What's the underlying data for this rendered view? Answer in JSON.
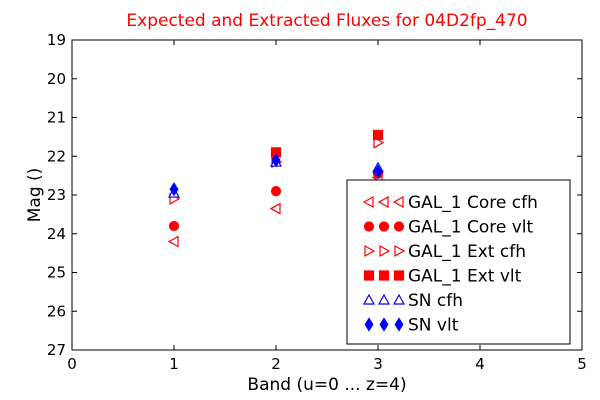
{
  "chart_data": {
    "type": "scatter",
    "title": "Expected and Extracted Fluxes for 04D2fp_470",
    "title_color": "#ff0000",
    "xlabel": "Band (u=0 ... z=4)",
    "ylabel": "Mag ()",
    "xlim": [
      0,
      5
    ],
    "ylim": [
      27,
      19
    ],
    "y_inverted": true,
    "xticks": [
      "0",
      "1",
      "2",
      "3",
      "4",
      "5"
    ],
    "yticks": [
      "19",
      "20",
      "21",
      "22",
      "23",
      "24",
      "25",
      "26",
      "27"
    ],
    "legend_position": "lower-right",
    "series": [
      {
        "name": "GAL_1 Core cfh",
        "marker": "triangle-left",
        "filled": false,
        "color": "#ff0000",
        "x": [
          1,
          2,
          3
        ],
        "y": [
          24.2,
          23.35,
          22.55
        ]
      },
      {
        "name": "GAL_1 Core vlt",
        "marker": "circle",
        "filled": true,
        "color": "#ff0000",
        "x": [
          1,
          2,
          3
        ],
        "y": [
          23.8,
          22.9,
          22.45
        ]
      },
      {
        "name": "GAL_1 Ext cfh",
        "marker": "triangle-right",
        "filled": false,
        "color": "#ff0000",
        "x": [
          1,
          2,
          3
        ],
        "y": [
          23.1,
          22.15,
          21.65
        ]
      },
      {
        "name": "GAL_1 Ext vlt",
        "marker": "square",
        "filled": true,
        "color": "#ff0000",
        "x": [
          2,
          3
        ],
        "y": [
          21.9,
          21.45
        ]
      },
      {
        "name": "SN cfh",
        "marker": "triangle-up",
        "filled": false,
        "color": "#0000ff",
        "x": [
          1,
          2,
          3
        ],
        "y": [
          22.95,
          22.15,
          22.3
        ]
      },
      {
        "name": "SN vlt",
        "marker": "diamond",
        "filled": true,
        "color": "#0000ff",
        "x": [
          1,
          2,
          3
        ],
        "y": [
          22.85,
          22.1,
          22.4
        ]
      }
    ]
  }
}
